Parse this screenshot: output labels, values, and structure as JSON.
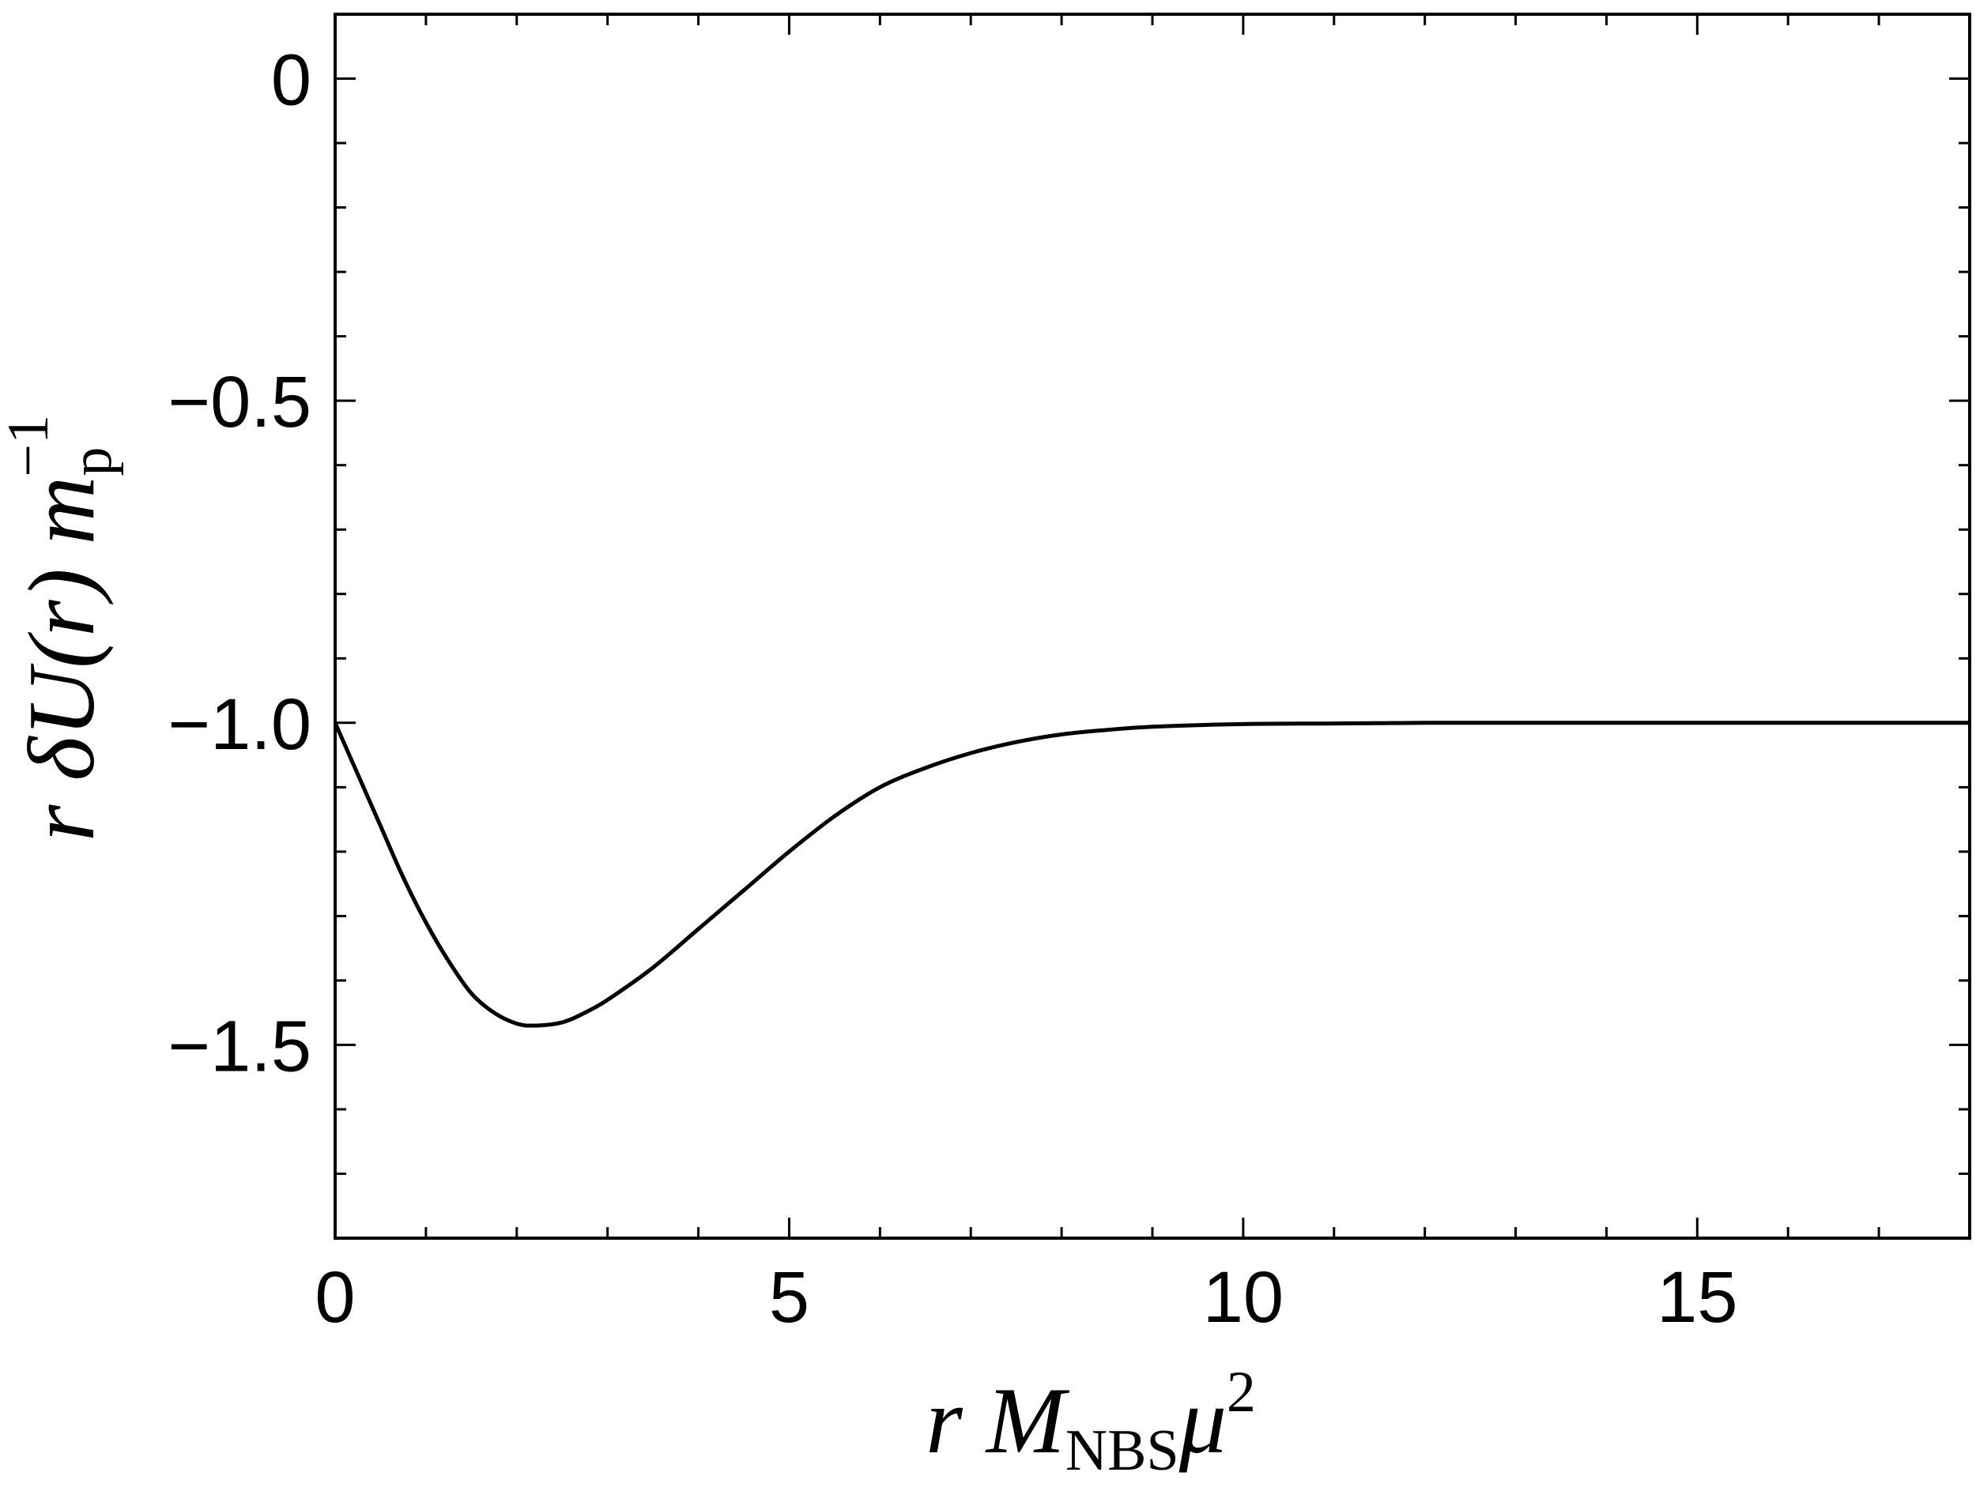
{
  "chart_data": {
    "type": "line",
    "xlabel": {
      "pre": "r M",
      "sub": "NBS",
      "post": "μ",
      "sup": "2"
    },
    "ylabel": {
      "pre": "r δU(r) m",
      "sub": "p",
      "sup": "−1"
    },
    "xlim": [
      0,
      18
    ],
    "ylim": [
      -1.8,
      0.1
    ],
    "x_ticks": [
      {
        "value": 0,
        "label": "0"
      },
      {
        "value": 5,
        "label": "5"
      },
      {
        "value": 10,
        "label": "10"
      },
      {
        "value": 15,
        "label": "15"
      }
    ],
    "y_ticks": [
      {
        "value": 0,
        "label": "0"
      },
      {
        "value": -0.5,
        "label": "−0.5"
      },
      {
        "value": -1.0,
        "label": "−1.0"
      },
      {
        "value": -1.5,
        "label": "−1.5"
      }
    ],
    "x_minor_step": 1,
    "y_minor_step": 0.1,
    "grid": false,
    "series": [
      {
        "color": "#000000",
        "x": [
          0,
          0.25,
          0.5,
          0.75,
          1.0,
          1.25,
          1.5,
          1.75,
          2.0,
          2.2,
          2.5,
          2.75,
          3.0,
          3.5,
          4.0,
          4.5,
          5.0,
          5.5,
          6.0,
          6.5,
          7.0,
          7.5,
          8.0,
          8.5,
          9.0,
          10.0,
          11.0,
          12.0,
          13.0,
          14.0,
          15.0,
          16.0,
          17.0,
          18.0
        ],
        "y": [
          -1.0,
          -1.08,
          -1.16,
          -1.24,
          -1.31,
          -1.37,
          -1.42,
          -1.45,
          -1.467,
          -1.47,
          -1.465,
          -1.45,
          -1.43,
          -1.38,
          -1.32,
          -1.26,
          -1.2,
          -1.145,
          -1.1,
          -1.07,
          -1.047,
          -1.03,
          -1.018,
          -1.011,
          -1.006,
          -1.002,
          -1.001,
          -1.0,
          -1.0,
          -1.0,
          -1.0,
          -1.0,
          -1.0,
          -1.0
        ]
      }
    ]
  }
}
